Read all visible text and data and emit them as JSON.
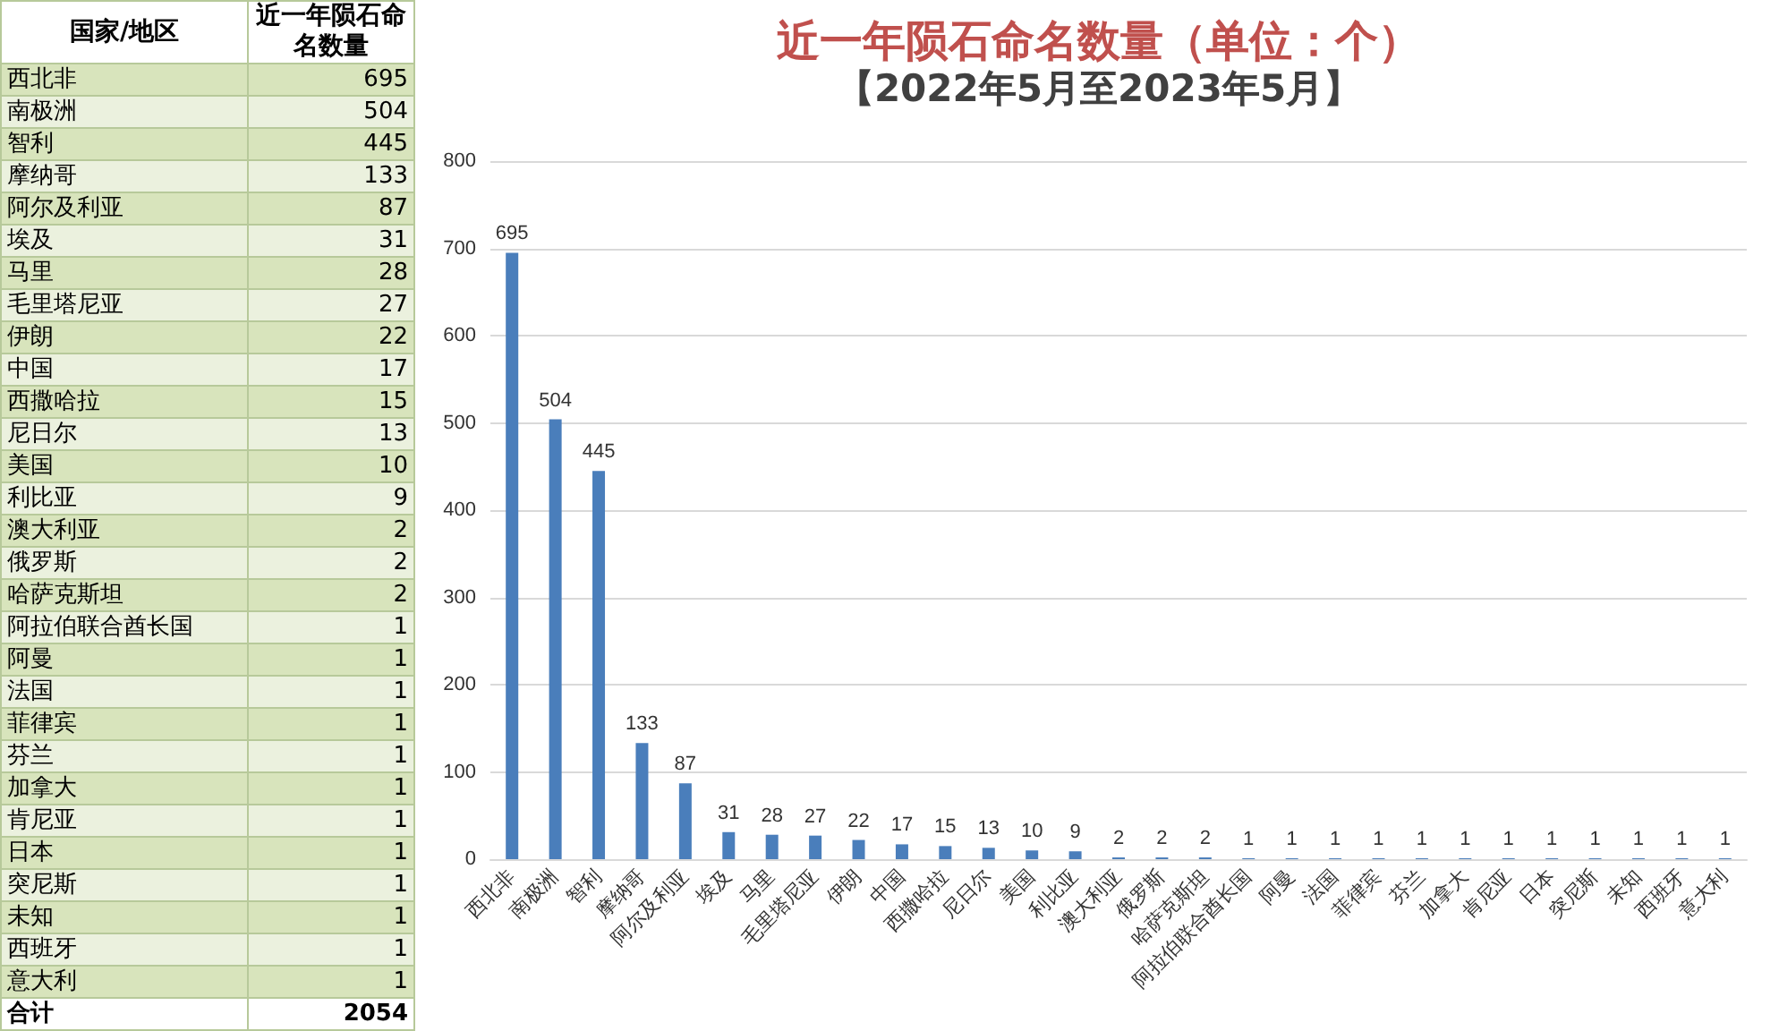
{
  "chart_data": [
    {
      "type": "other",
      "categories": [
        "西北非",
        "南极洲",
        "智利",
        "摩纳哥",
        "阿尔及利亚",
        "埃及",
        "马里",
        "毛里塔尼亚",
        "伊朗",
        "中国",
        "西撒哈拉",
        "尼日尔",
        "美国",
        "利比亚",
        "澳大利亚",
        "俄罗斯",
        "哈萨克斯坦",
        "阿拉伯联合酋长国",
        "阿曼",
        "法国",
        "菲律宾",
        "芬兰",
        "加拿大",
        "肯尼亚",
        "日本",
        "突尼斯",
        "未知",
        "西班牙",
        "意大利"
      ],
      "values": [
        695,
        504,
        445,
        133,
        87,
        31,
        28,
        27,
        22,
        17,
        15,
        13,
        10,
        9,
        2,
        2,
        2,
        1,
        1,
        1,
        1,
        1,
        1,
        1,
        1,
        1,
        1,
        1,
        1
      ],
      "value_labels": [
        "695",
        "504",
        "445",
        "133",
        "87",
        "31",
        "28",
        "27",
        "22",
        "17",
        "15",
        "13",
        "10",
        "9",
        "2",
        "2",
        "2",
        "1",
        "1",
        "1",
        "1",
        "1",
        "1",
        "1",
        "1",
        "1",
        "1",
        "1",
        "1"
      ],
      "annotations": [
        "国家/地区",
        "近一年陨石命名数量",
        "合计",
        "2054"
      ]
    },
    {
      "type": "bar",
      "title": "近一年陨石命名数量（单位：个）",
      "subtitle": "【2022年5月至2023年5月】",
      "categories": [
        "西北非",
        "南极洲",
        "智利",
        "摩纳哥",
        "阿尔及利亚",
        "埃及",
        "马里",
        "毛里塔尼亚",
        "伊朗",
        "中国",
        "西撒哈拉",
        "尼日尔",
        "美国",
        "利比亚",
        "澳大利亚",
        "俄罗斯",
        "哈萨克斯坦",
        "阿拉伯联合酋长国",
        "阿曼",
        "法国",
        "菲律宾",
        "芬兰",
        "加拿大",
        "肯尼亚",
        "日本",
        "突尼斯",
        "未知",
        "西班牙",
        "意大利"
      ],
      "values": [
        695,
        504,
        445,
        133,
        87,
        31,
        28,
        27,
        22,
        17,
        15,
        13,
        10,
        9,
        2,
        2,
        2,
        1,
        1,
        1,
        1,
        1,
        1,
        1,
        1,
        1,
        1,
        1,
        1
      ],
      "color": "#4a7ebb",
      "ylim": [
        0,
        800
      ],
      "yticks": [
        0,
        100,
        200,
        300,
        400,
        500,
        600,
        700,
        800
      ],
      "grid": "y",
      "data_labels": true
    }
  ]
}
